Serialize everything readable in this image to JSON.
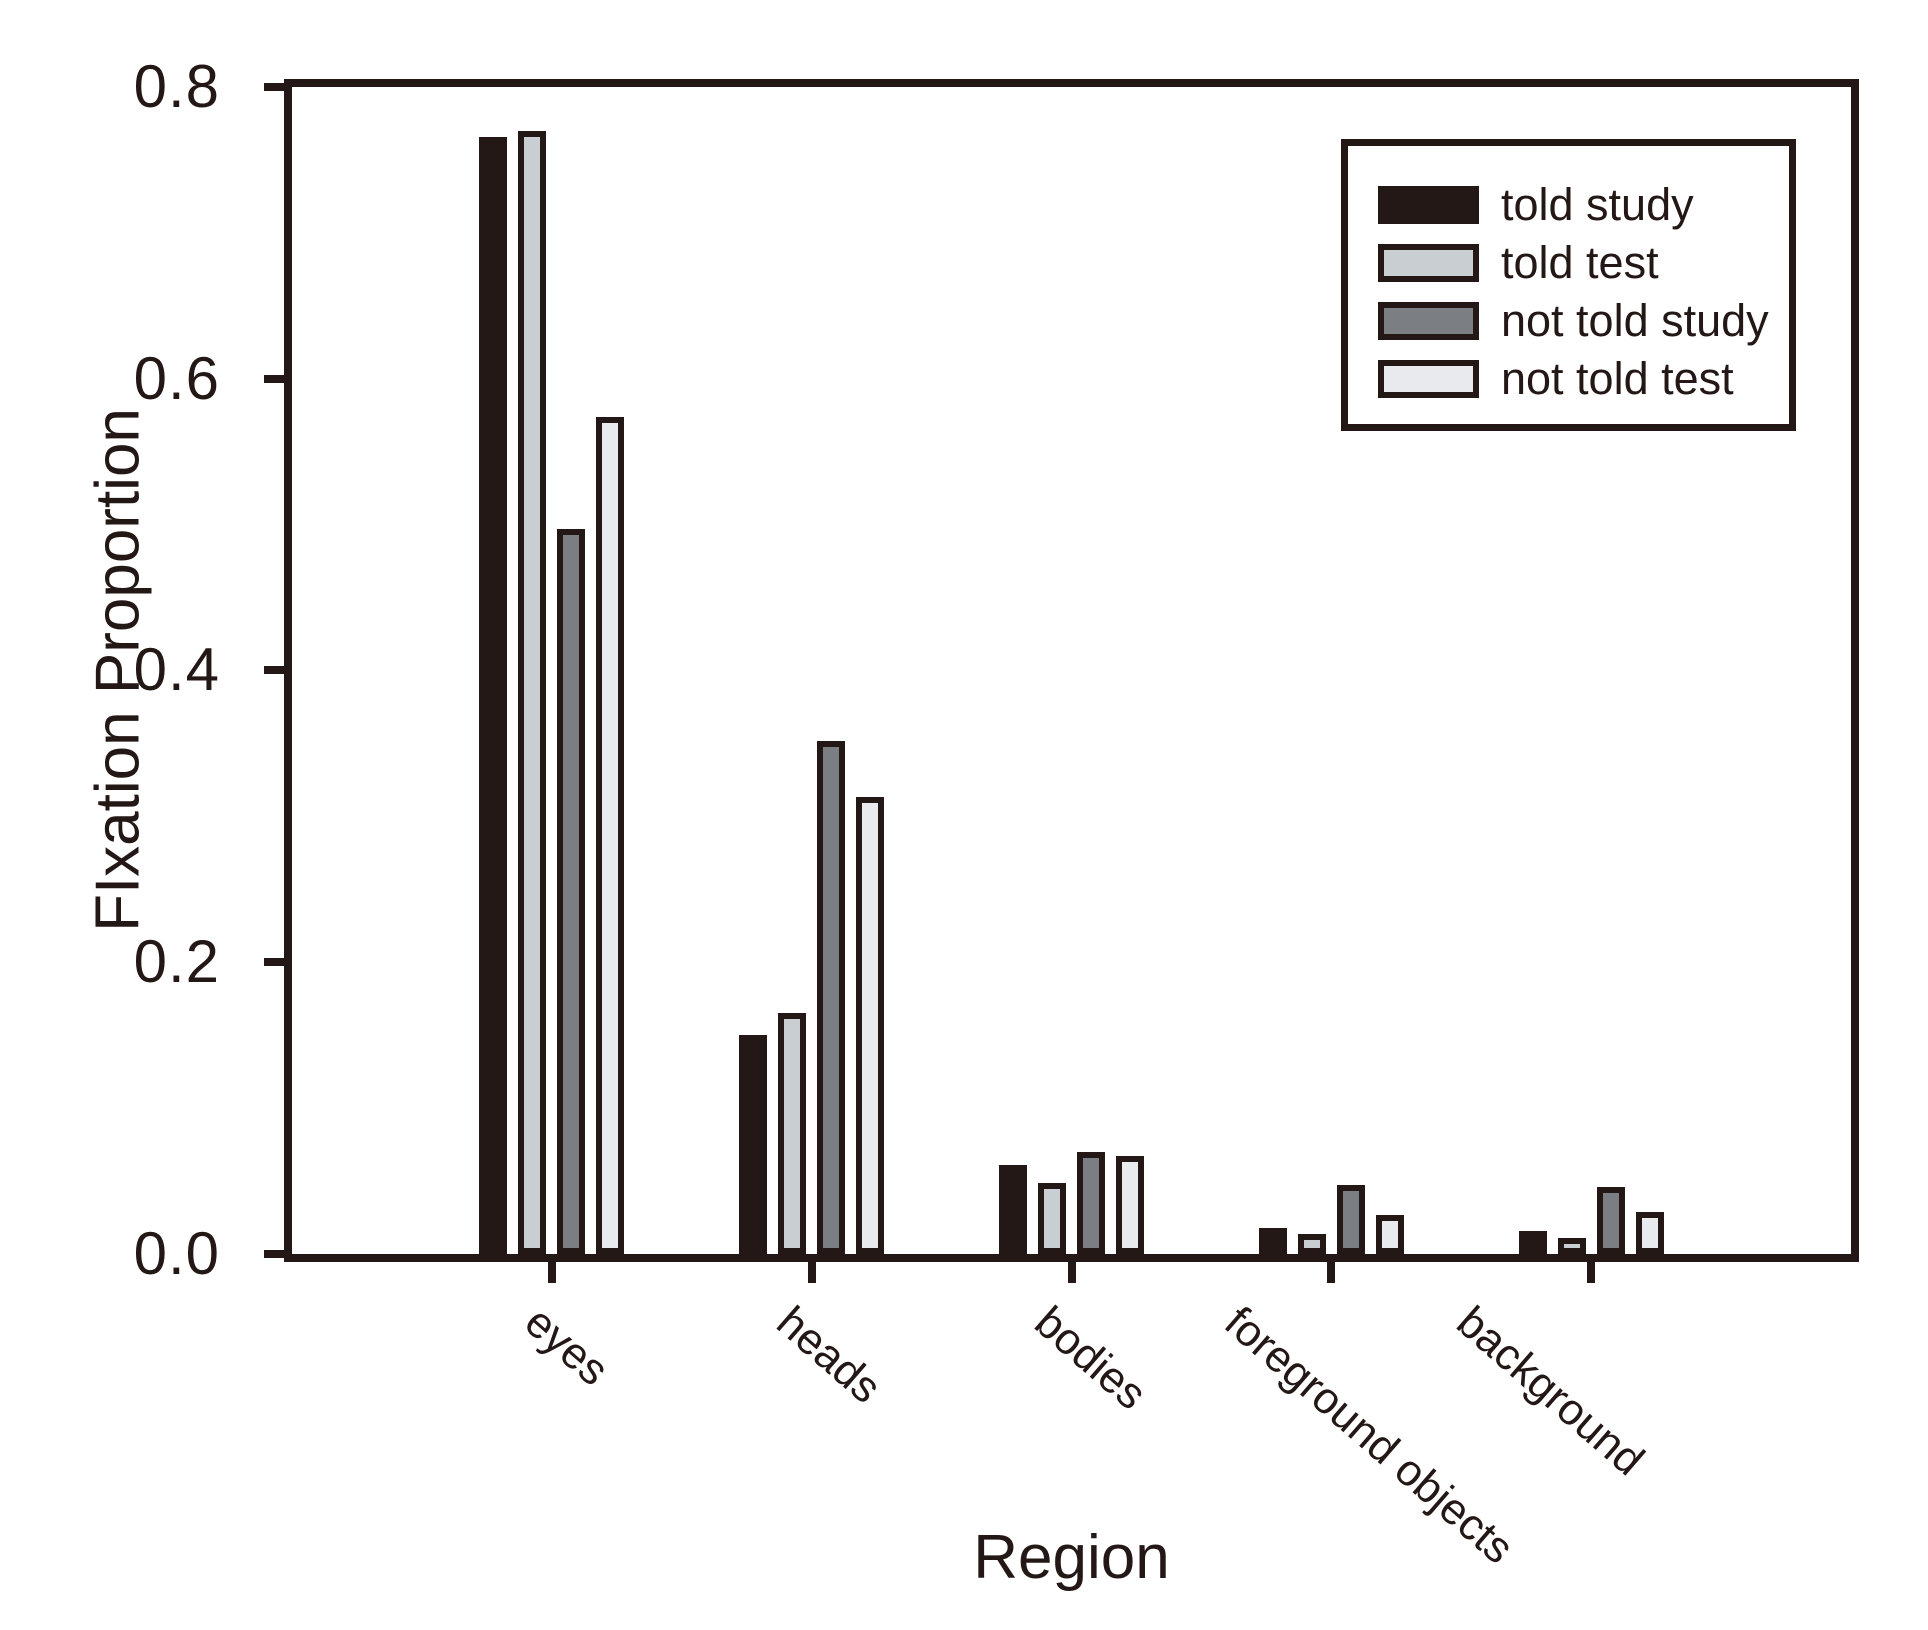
{
  "chart_data": {
    "type": "bar",
    "title": "",
    "xlabel": "Region",
    "ylabel": "FIxation Proportion",
    "categories": [
      "eyes",
      "heads",
      "bodies",
      "foreground objects",
      "background"
    ],
    "series": [
      {
        "name": "told study",
        "color": "#231815",
        "values": [
          0.766,
          0.15,
          0.061,
          0.018,
          0.016
        ]
      },
      {
        "name": "told test",
        "color": "#c9ced3",
        "values": [
          0.77,
          0.165,
          0.049,
          0.014,
          0.011
        ]
      },
      {
        "name": "not told study",
        "color": "#7b7f83",
        "values": [
          0.497,
          0.352,
          0.07,
          0.047,
          0.046
        ]
      },
      {
        "name": "not told test",
        "color": "#e8eaee",
        "values": [
          0.574,
          0.313,
          0.067,
          0.027,
          0.029
        ]
      }
    ],
    "ylim": [
      0,
      0.8
    ],
    "y_ticks": [
      "0.0",
      "0.2",
      "0.4",
      "0.6",
      "0.8"
    ],
    "grid": false,
    "legend_position": "top-right-inside",
    "bar_outline_color": "#231815",
    "background_color": "#ffffff"
  }
}
